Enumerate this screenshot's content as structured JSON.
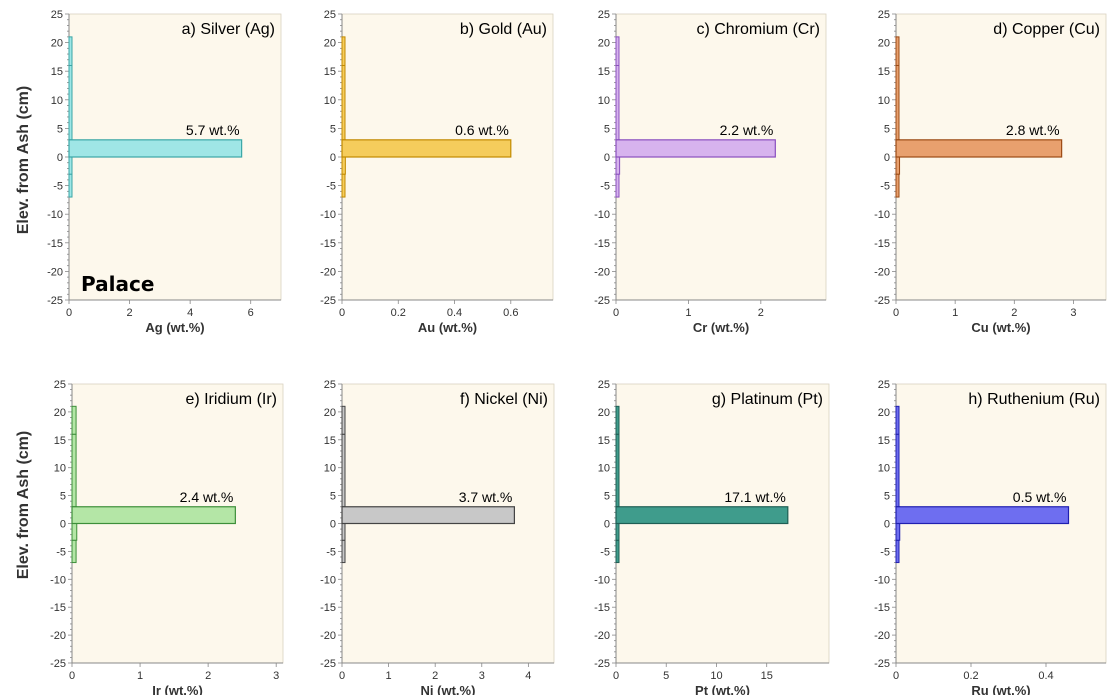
{
  "site_label": "Palace",
  "ylabel": "Elev. from Ash (cm)",
  "colors": {
    "background": "#fdf8ec",
    "axis": "#888888"
  },
  "chart_data": [
    {
      "type": "bar",
      "title": "a) Silver (Ag)",
      "xlabel": "Ag (wt.%)",
      "annotation": "5.7 wt.%",
      "xticks": [
        0,
        2,
        4,
        6
      ],
      "xlim": [
        0,
        7
      ],
      "ylim": [
        -25,
        25
      ],
      "yticks": [
        -25,
        -20,
        -15,
        -10,
        -5,
        0,
        5,
        10,
        15,
        20,
        25
      ],
      "fill": "#9fe6e6",
      "stroke": "#3aa6a6",
      "bars": [
        {
          "y_from": -7,
          "y_to": -3,
          "value": 0.08
        },
        {
          "y_from": -3,
          "y_to": 3,
          "value": 0.09
        },
        {
          "y_from": 3,
          "y_to": 16,
          "value": 0.07
        },
        {
          "y_from": 16,
          "y_to": 21,
          "value": 0.07
        }
      ],
      "peak": {
        "y_from": 0,
        "y_to": 3,
        "value": 5.7
      }
    },
    {
      "type": "bar",
      "title": "b) Gold (Au)",
      "xlabel": "Au (wt.%)",
      "annotation": "0.6 wt.%",
      "xticks": [
        0,
        0.2,
        0.4,
        0.6
      ],
      "xlim": [
        0,
        0.75
      ],
      "ylim": [
        -25,
        25
      ],
      "yticks": [
        -25,
        -20,
        -15,
        -10,
        -5,
        0,
        5,
        10,
        15,
        20,
        25
      ],
      "fill": "#f5cc5c",
      "stroke": "#c28a00",
      "bars": [
        {
          "y_from": -7,
          "y_to": -3,
          "value": 0.01
        },
        {
          "y_from": -3,
          "y_to": 3,
          "value": 0.012
        },
        {
          "y_from": 3,
          "y_to": 16,
          "value": 0.01
        },
        {
          "y_from": 16,
          "y_to": 21,
          "value": 0.01
        }
      ],
      "peak": {
        "y_from": 0,
        "y_to": 3,
        "value": 0.6
      }
    },
    {
      "type": "bar",
      "title": "c) Chromium (Cr)",
      "xlabel": "Cr (wt.%)",
      "annotation": "2.2 wt.%",
      "xticks": [
        0,
        1,
        2
      ],
      "xlim": [
        0,
        2.9
      ],
      "ylim": [
        -25,
        25
      ],
      "yticks": [
        -25,
        -20,
        -15,
        -10,
        -5,
        0,
        5,
        10,
        15,
        20,
        25
      ],
      "fill": "#d7b3ee",
      "stroke": "#8a4fbf",
      "bars": [
        {
          "y_from": -7,
          "y_to": -3,
          "value": 0.04
        },
        {
          "y_from": -3,
          "y_to": 3,
          "value": 0.05
        },
        {
          "y_from": 3,
          "y_to": 16,
          "value": 0.04
        },
        {
          "y_from": 16,
          "y_to": 21,
          "value": 0.04
        }
      ],
      "peak": {
        "y_from": 0,
        "y_to": 3,
        "value": 2.2
      }
    },
    {
      "type": "bar",
      "title": "d) Copper (Cu)",
      "xlabel": "Cu (wt.%)",
      "annotation": "2.8 wt.%",
      "xticks": [
        0,
        1,
        2,
        3
      ],
      "xlim": [
        0,
        3.55
      ],
      "ylim": [
        -25,
        25
      ],
      "yticks": [
        -25,
        -20,
        -15,
        -10,
        -5,
        0,
        5,
        10,
        15,
        20,
        25
      ],
      "fill": "#e8a06e",
      "stroke": "#9c4a14",
      "bars": [
        {
          "y_from": -7,
          "y_to": -3,
          "value": 0.05
        },
        {
          "y_from": -3,
          "y_to": 3,
          "value": 0.06
        },
        {
          "y_from": 3,
          "y_to": 16,
          "value": 0.05
        },
        {
          "y_from": 16,
          "y_to": 21,
          "value": 0.05
        }
      ],
      "peak": {
        "y_from": 0,
        "y_to": 3,
        "value": 2.8
      }
    },
    {
      "type": "bar",
      "title": "e) Iridium (Ir)",
      "xlabel": "Ir (wt.%)",
      "annotation": "2.4 wt.%",
      "xticks": [
        0,
        1,
        2,
        3
      ],
      "xlim": [
        0,
        3.1
      ],
      "ylim": [
        -25,
        25
      ],
      "yticks": [
        -25,
        -20,
        -15,
        -10,
        -5,
        0,
        5,
        10,
        15,
        20,
        25
      ],
      "fill": "#b4e6a6",
      "stroke": "#3d8f3a",
      "bars": [
        {
          "y_from": -7,
          "y_to": -3,
          "value": 0.06
        },
        {
          "y_from": -3,
          "y_to": 3,
          "value": 0.07
        },
        {
          "y_from": 3,
          "y_to": 16,
          "value": 0.06
        },
        {
          "y_from": 16,
          "y_to": 21,
          "value": 0.06
        }
      ],
      "peak": {
        "y_from": 0,
        "y_to": 3,
        "value": 2.4
      }
    },
    {
      "type": "bar",
      "title": "f) Nickel (Ni)",
      "xlabel": "Ni (wt.%)",
      "annotation": "3.7 wt.%",
      "xticks": [
        0,
        1,
        2,
        3,
        4
      ],
      "xlim": [
        0,
        4.55
      ],
      "ylim": [
        -25,
        25
      ],
      "yticks": [
        -25,
        -20,
        -15,
        -10,
        -5,
        0,
        5,
        10,
        15,
        20,
        25
      ],
      "fill": "#c8c8c8",
      "stroke": "#444444",
      "bars": [
        {
          "y_from": -7,
          "y_to": -3,
          "value": 0.05
        },
        {
          "y_from": -3,
          "y_to": 3,
          "value": 0.06
        },
        {
          "y_from": 3,
          "y_to": 16,
          "value": 0.05
        },
        {
          "y_from": 16,
          "y_to": 21,
          "value": 0.05
        }
      ],
      "peak": {
        "y_from": 0,
        "y_to": 3,
        "value": 3.7
      }
    },
    {
      "type": "bar",
      "title": "g) Platinum (Pt)",
      "xlabel": "Pt (wt.%)",
      "annotation": "17.1 wt.%",
      "xticks": [
        0,
        5,
        10,
        15
      ],
      "xlim": [
        0,
        21.2
      ],
      "ylim": [
        -25,
        25
      ],
      "yticks": [
        -25,
        -20,
        -15,
        -10,
        -5,
        0,
        5,
        10,
        15,
        20,
        25
      ],
      "fill": "#3f9c8c",
      "stroke": "#1f5f55",
      "bars": [
        {
          "y_from": -7,
          "y_to": -3,
          "value": 0.2
        },
        {
          "y_from": -3,
          "y_to": 3,
          "value": 0.25
        },
        {
          "y_from": 3,
          "y_to": 16,
          "value": 0.2
        },
        {
          "y_from": 16,
          "y_to": 21,
          "value": 0.2
        }
      ],
      "peak": {
        "y_from": 0,
        "y_to": 3,
        "value": 17.1
      }
    },
    {
      "type": "bar",
      "title": "h) Ruthenium (Ru)",
      "xlabel": "Ru (wt.%)",
      "annotation": "0.5 wt.%",
      "xticks": [
        0,
        0.2,
        0.4
      ],
      "xlim": [
        0,
        0.56
      ],
      "ylim": [
        -25,
        25
      ],
      "yticks": [
        -25,
        -20,
        -15,
        -10,
        -5,
        0,
        5,
        10,
        15,
        20,
        25
      ],
      "fill": "#6e6ef0",
      "stroke": "#2020b0",
      "bars": [
        {
          "y_from": -7,
          "y_to": -3,
          "value": 0.008
        },
        {
          "y_from": -3,
          "y_to": 3,
          "value": 0.01
        },
        {
          "y_from": 3,
          "y_to": 16,
          "value": 0.008
        },
        {
          "y_from": 16,
          "y_to": 21,
          "value": 0.008
        }
      ],
      "peak": {
        "y_from": 0,
        "y_to": 3,
        "value": 0.46
      }
    }
  ]
}
